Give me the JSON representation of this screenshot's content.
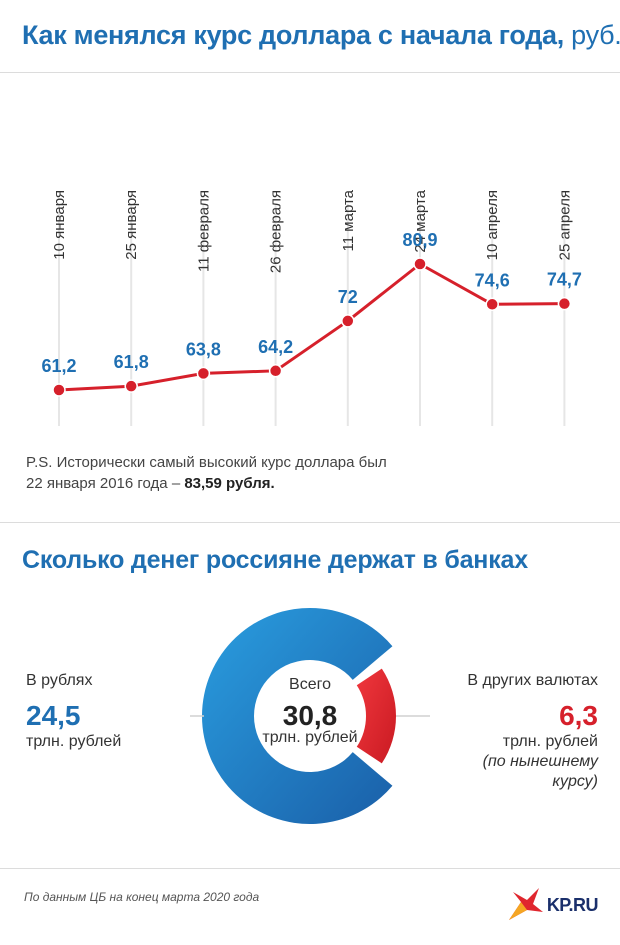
{
  "header": {
    "title_main": "Как менялся курс доллара с начала года,",
    "title_unit": " руб."
  },
  "chart_data": [
    {
      "type": "line",
      "categories": [
        "10 января",
        "25 января",
        "11 февраля",
        "26 февраля",
        "11 марта",
        "24 марта",
        "10 апреля",
        "25 апреля"
      ],
      "values": [
        61.2,
        61.8,
        63.8,
        64.2,
        72,
        80.9,
        74.6,
        74.7
      ],
      "value_labels": [
        "61,2",
        "61,8",
        "63,8",
        "64,2",
        "72",
        "80,9",
        "74,6",
        "74,7"
      ],
      "title": "Как менялся курс доллара с начала года, руб.",
      "line_color": "#d6202b",
      "label_color": "#1f6fb2"
    },
    {
      "type": "pie",
      "title": "Сколько денег россияне держат в банках",
      "labels": [
        "В рублях",
        "В других валютах"
      ],
      "values": [
        24.5,
        6.3
      ],
      "value_labels": [
        "24,5",
        "6,3"
      ],
      "total_label": "30,8",
      "colors": [
        "#1f7ec4",
        "#e0262e"
      ]
    }
  ],
  "note": {
    "prefix": "P.S. Исторически самый высокий курс доллара был",
    "line2": "22 января 2016 года – ",
    "bold": "83,59 рубля."
  },
  "deposits": {
    "title": "Сколько денег россияне держат в банках",
    "rub_label": "В рублях",
    "rub_value": "24,5",
    "rub_unit": "трлн. рублей",
    "total_label": "Всего",
    "total_value": "30,8",
    "total_unit": "трлн. рублей",
    "fx_label": "В других валютах",
    "fx_value": "6,3",
    "fx_unit": "трлн. рублей",
    "fx_note": "(по нынешнему курсу)"
  },
  "footer": {
    "source": "По данным ЦБ на конец марта 2020 года",
    "logo": "KP.RU"
  }
}
